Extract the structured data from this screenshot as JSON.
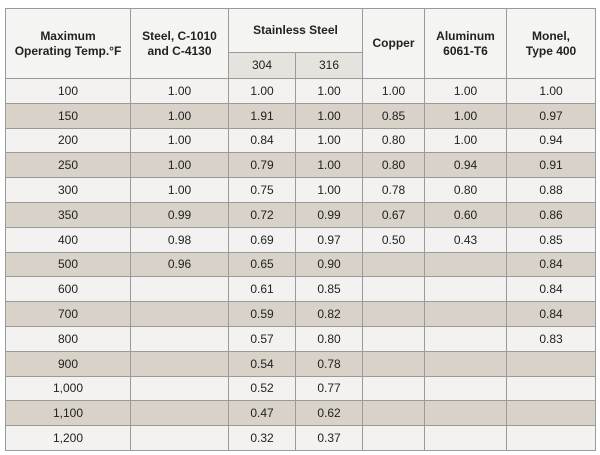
{
  "table": {
    "headers": [
      "Maximum\nOperating Temp.°F",
      "Steel, C-1010\nand C-4130",
      "Stainless Steel",
      "Copper",
      "Aluminum\n6061-T6",
      "Monel,\nType 400"
    ],
    "subheaders": [
      "304",
      "316"
    ],
    "rows": [
      [
        "100",
        "1.00",
        "1.00",
        "1.00",
        "1.00",
        "1.00",
        "1.00"
      ],
      [
        "150",
        "1.00",
        "1.91",
        "1.00",
        "0.85",
        "1.00",
        "0.97"
      ],
      [
        "200",
        "1.00",
        "0.84",
        "1.00",
        "0.80",
        "1.00",
        "0.94"
      ],
      [
        "250",
        "1.00",
        "0.79",
        "1.00",
        "0.80",
        "0.94",
        "0.91"
      ],
      [
        "300",
        "1.00",
        "0.75",
        "1.00",
        "0.78",
        "0.80",
        "0.88"
      ],
      [
        "350",
        "0.99",
        "0.72",
        "0.99",
        "0.67",
        "0.60",
        "0.86"
      ],
      [
        "400",
        "0.98",
        "0.69",
        "0.97",
        "0.50",
        "0.43",
        "0.85"
      ],
      [
        "500",
        "0.96",
        "0.65",
        "0.90",
        null,
        null,
        "0.84"
      ],
      [
        "600",
        null,
        "0.61",
        "0.85",
        null,
        null,
        "0.84"
      ],
      [
        "700",
        null,
        "0.59",
        "0.82",
        null,
        null,
        "0.84"
      ],
      [
        "800",
        null,
        "0.57",
        "0.80",
        null,
        null,
        "0.83"
      ],
      [
        "900",
        null,
        "0.54",
        "0.78",
        null,
        null,
        null
      ],
      [
        "1,000",
        null,
        "0.52",
        "0.77",
        null,
        null,
        null
      ],
      [
        "1,100",
        null,
        "0.47",
        "0.62",
        null,
        null,
        null
      ],
      [
        "1,200",
        null,
        "0.32",
        "0.37",
        null,
        null,
        null
      ]
    ]
  }
}
